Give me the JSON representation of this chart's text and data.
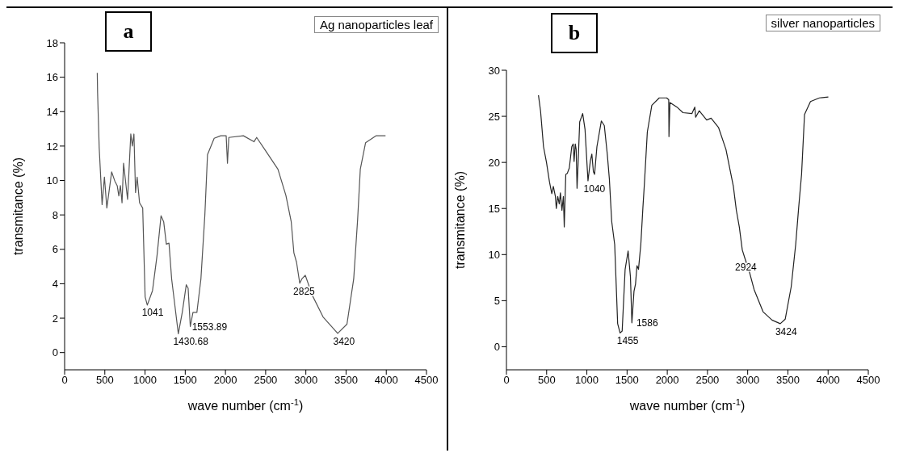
{
  "chart_data": [
    {
      "type": "line",
      "title": "a",
      "xlabel": "wave number (cm$^{-1}$)",
      "ylabel": "transmitance (%)",
      "xlim": [
        0,
        4500
      ],
      "xticks": [
        0,
        500,
        1000,
        1500,
        2000,
        2500,
        3000,
        3500,
        4000,
        4500
      ],
      "ylim": [
        -1,
        18
      ],
      "yticks": [
        0,
        2,
        4,
        6,
        8,
        10,
        12,
        14,
        16,
        18
      ],
      "grid": false,
      "legend": "top right",
      "marker": "none",
      "line_style": "solid",
      "series": [
        {
          "name": "Ag nanoparticles leaf",
          "color": "#555555",
          "x": [
            406,
            410,
            430,
            466,
            495,
            525,
            585,
            624,
            654,
            674,
            694,
            714,
            733,
            783,
            823,
            842,
            862,
            882,
            902,
            932,
            971,
            1001,
            1028,
            1093,
            1150,
            1199,
            1232,
            1265,
            1298,
            1331,
            1414,
            1463,
            1513,
            1536,
            1563,
            1596,
            1645,
            1695,
            1744,
            1777,
            1860,
            1942,
            2009,
            2025,
            2042,
            2223,
            2355,
            2388,
            2504,
            2653,
            2752,
            2818,
            2851,
            2884,
            2924,
            2950,
            2993,
            3082,
            3214,
            3396,
            3511,
            3595,
            3644,
            3677,
            3743,
            3875,
            3991
          ],
          "values": [
            16.25,
            15.1,
            11.9,
            8.6,
            10.2,
            8.4,
            10.5,
            9.97,
            9.7,
            9.1,
            9.7,
            8.7,
            11.0,
            8.9,
            12.7,
            12.0,
            12.7,
            9.3,
            10.2,
            8.7,
            8.4,
            3.24,
            2.76,
            3.6,
            5.67,
            7.95,
            7.6,
            6.3,
            6.36,
            4.28,
            1.09,
            2.34,
            3.94,
            3.74,
            1.51,
            2.34,
            2.34,
            4.28,
            8.0,
            11.5,
            12.45,
            12.6,
            12.6,
            11.0,
            12.5,
            12.6,
            12.25,
            12.5,
            11.7,
            10.65,
            9.13,
            7.6,
            5.8,
            5.25,
            4.03,
            4.28,
            4.49,
            3.31,
            2.07,
            1.12,
            1.65,
            4.28,
            7.75,
            10.65,
            12.2,
            12.6,
            12.6
          ]
        }
      ],
      "annotations": [
        {
          "text": "1041",
          "x": 1041,
          "y": 2.8
        },
        {
          "text": "1430.68",
          "x": 1430.68,
          "y": 1.1
        },
        {
          "text": "1553.89",
          "x": 1553.89,
          "y": 1.5
        },
        {
          "text": "2825",
          "x": 2924,
          "y": 4.03
        },
        {
          "text": "3420",
          "x": 3420,
          "y": 1.1
        }
      ]
    },
    {
      "type": "line",
      "title": "b",
      "xlabel": "wave number (cm$^{-1}$)",
      "ylabel": "transmitance (%)",
      "xlim": [
        0,
        4500
      ],
      "xticks": [
        0,
        500,
        1000,
        1500,
        2000,
        2500,
        3000,
        3500,
        4000,
        4500
      ],
      "ylim": [
        -2.5,
        30
      ],
      "yticks": [
        0,
        5,
        10,
        15,
        20,
        25,
        30
      ],
      "grid": false,
      "legend": "top right",
      "marker": "none",
      "line_style": "solid",
      "series": [
        {
          "name": "silver nanoparticles",
          "color": "#222222",
          "x": [
            398,
            424,
            461,
            498,
            535,
            564,
            583,
            609,
            620,
            638,
            657,
            671,
            690,
            708,
            719,
            738,
            756,
            782,
            812,
            830,
            841,
            856,
            867,
            878,
            893,
            911,
            948,
            977,
            1014,
            1044,
            1062,
            1081,
            1096,
            1125,
            1180,
            1217,
            1254,
            1280,
            1309,
            1346,
            1383,
            1413,
            1439,
            1476,
            1513,
            1542,
            1560,
            1586,
            1605,
            1623,
            1642,
            1671,
            1697,
            1715,
            1752,
            1808,
            1900,
            1992,
            2018,
            2021,
            2033,
            2121,
            2195,
            2306,
            2342,
            2353,
            2397,
            2490,
            2545,
            2637,
            2730,
            2822,
            2859,
            2896,
            2933,
            2969,
            3025,
            3080,
            3191,
            3302,
            3405,
            3467,
            3541,
            3597,
            3634,
            3670,
            3707,
            3781,
            3892,
            4003
          ],
          "values": [
            27.3,
            25.6,
            21.7,
            20.0,
            17.9,
            16.6,
            17.4,
            16.3,
            15.0,
            16.3,
            15.5,
            16.7,
            14.8,
            16.3,
            13.0,
            18.7,
            18.8,
            19.4,
            21.7,
            22.0,
            20.1,
            22.0,
            21.4,
            17.2,
            20.3,
            24.4,
            25.3,
            23.6,
            18.0,
            20.2,
            20.9,
            19.0,
            18.7,
            21.7,
            24.5,
            24.0,
            20.9,
            18.2,
            13.6,
            11.1,
            2.5,
            1.5,
            1.7,
            8.4,
            10.4,
            7.6,
            2.6,
            6.0,
            6.8,
            8.8,
            8.4,
            11.1,
            15.1,
            17.6,
            23.3,
            26.2,
            27.0,
            27.0,
            26.8,
            22.8,
            26.5,
            26.0,
            25.4,
            25.3,
            26.0,
            24.9,
            25.6,
            24.6,
            24.8,
            23.8,
            21.4,
            17.4,
            14.8,
            13.0,
            10.5,
            9.5,
            8.0,
            6.2,
            3.8,
            2.9,
            2.5,
            3.0,
            6.5,
            11.1,
            15.1,
            18.7,
            25.2,
            26.6,
            27.0,
            27.1
          ]
        }
      ],
      "annotations": [
        {
          "text": "1040",
          "x": 1040,
          "y": 18.0
        },
        {
          "text": "1455",
          "x": 1455,
          "y": 1.5
        },
        {
          "text": "1586",
          "x": 1586,
          "y": 2.6
        },
        {
          "text": "2924",
          "x": 2924,
          "y": 9.5
        },
        {
          "text": "3424",
          "x": 3424,
          "y": 2.5
        }
      ]
    }
  ]
}
